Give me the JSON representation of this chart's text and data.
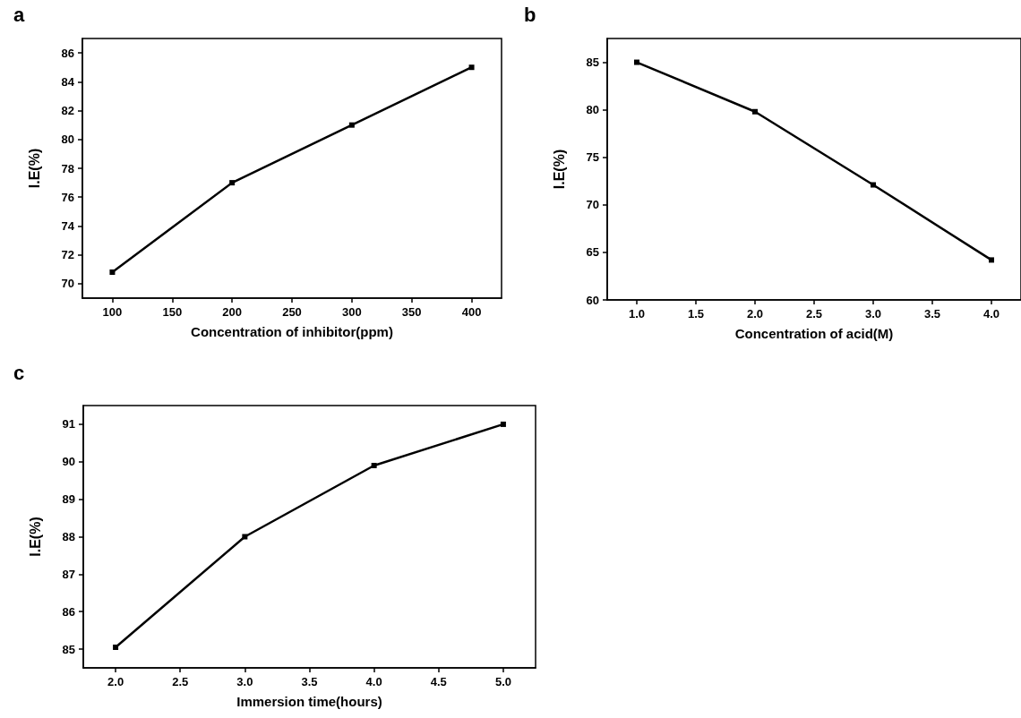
{
  "chart_data": [
    {
      "type": "line",
      "title": "a",
      "xlabel": "Concentration of inhibitor(ppm)",
      "ylabel": "I.E(%)",
      "x": [
        100,
        200,
        300,
        400
      ],
      "values": [
        70.8,
        77,
        81,
        85
      ],
      "color": "#000000",
      "xlim": [
        75,
        425
      ],
      "xticks": [
        100,
        150,
        200,
        250,
        300,
        350,
        400
      ],
      "ylim": [
        69,
        87
      ],
      "yticks": [
        70,
        72,
        74,
        76,
        78,
        80,
        82,
        84,
        86
      ],
      "marker": "square"
    },
    {
      "type": "line",
      "title": "b",
      "xlabel": "Concentration of acid(M)",
      "ylabel": "I.E(%)",
      "x": [
        1.0,
        2.0,
        3.0,
        4.0
      ],
      "values": [
        85,
        79.8,
        72.1,
        64.2
      ],
      "color": "#000000",
      "xlim": [
        0.75,
        4.25
      ],
      "xticks": [
        {
          "value": 1,
          "label": "1.0"
        },
        1.5,
        {
          "value": 2,
          "label": "2.0"
        },
        2.5,
        {
          "value": 3,
          "label": "3.0"
        },
        3.5,
        {
          "value": 4,
          "label": "4.0"
        }
      ],
      "ylim": [
        60,
        87.5
      ],
      "yticks": [
        60,
        65,
        70,
        75,
        80,
        85
      ],
      "marker": "square"
    },
    {
      "type": "line",
      "title": "c",
      "xlabel": "Immersion time(hours)",
      "ylabel": "I.E(%)",
      "x": [
        2.0,
        3.0,
        4.0,
        5.0
      ],
      "values": [
        85.05,
        88,
        89.9,
        91
      ],
      "color": "#000000",
      "xlim": [
        1.75,
        5.25
      ],
      "xticks": [
        {
          "value": 2,
          "label": "2.0"
        },
        2.5,
        {
          "value": 3,
          "label": "3.0"
        },
        3.5,
        {
          "value": 4,
          "label": "4.0"
        },
        4.5,
        {
          "value": 5,
          "label": "5.0"
        }
      ],
      "ylim": [
        84.5,
        91.5
      ],
      "yticks": [
        85,
        86,
        87,
        88,
        89,
        90,
        91
      ],
      "marker": "square"
    }
  ]
}
